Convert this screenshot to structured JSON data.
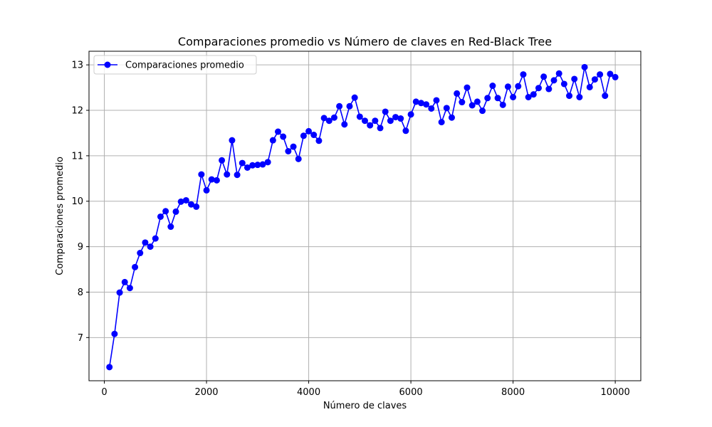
{
  "chart_data": {
    "type": "line",
    "title": "Comparaciones promedio vs Número de claves en Red-Black Tree",
    "xlabel": "Número de claves",
    "ylabel": "Comparaciones promedio",
    "xlim": [
      -300,
      10500
    ],
    "ylim": [
      6.05,
      13.3
    ],
    "xticks": [
      0,
      2000,
      4000,
      6000,
      8000,
      10000
    ],
    "yticks": [
      7,
      8,
      9,
      10,
      11,
      12,
      13
    ],
    "grid": true,
    "legend_position": "upper-left",
    "series": [
      {
        "name": "Comparaciones promedio",
        "color": "#0000ff",
        "marker": "circle",
        "x": [
          100,
          200,
          300,
          400,
          500,
          600,
          700,
          800,
          900,
          1000,
          1100,
          1200,
          1300,
          1400,
          1500,
          1600,
          1700,
          1800,
          1900,
          2000,
          2100,
          2200,
          2300,
          2400,
          2500,
          2600,
          2700,
          2800,
          2900,
          3000,
          3100,
          3200,
          3300,
          3400,
          3500,
          3600,
          3700,
          3800,
          3900,
          4000,
          4100,
          4200,
          4300,
          4400,
          4500,
          4600,
          4700,
          4800,
          4900,
          5000,
          5100,
          5200,
          5300,
          5400,
          5500,
          5600,
          5700,
          5800,
          5900,
          6000,
          6100,
          6200,
          6300,
          6400,
          6500,
          6600,
          6700,
          6800,
          6900,
          7000,
          7100,
          7200,
          7300,
          7400,
          7500,
          7600,
          7700,
          7800,
          7900,
          8000,
          8100,
          8200,
          8300,
          8400,
          8500,
          8600,
          8700,
          8800,
          8900,
          9000,
          9100,
          9200,
          9300,
          9400,
          9500,
          9600,
          9700,
          9800,
          9900,
          10000
        ],
        "y": [
          6.35,
          7.08,
          7.99,
          8.22,
          8.09,
          8.55,
          8.86,
          9.09,
          9.0,
          9.18,
          9.66,
          9.78,
          9.44,
          9.77,
          9.99,
          10.02,
          9.93,
          9.88,
          10.59,
          10.24,
          10.48,
          10.46,
          10.9,
          10.59,
          11.34,
          10.58,
          10.84,
          10.74,
          10.79,
          10.8,
          10.81,
          10.86,
          11.34,
          11.53,
          11.42,
          11.1,
          11.2,
          10.93,
          11.44,
          11.54,
          11.46,
          11.33,
          11.83,
          11.77,
          11.84,
          12.09,
          11.69,
          12.09,
          12.28,
          11.86,
          11.77,
          11.67,
          11.77,
          11.61,
          11.97,
          11.77,
          11.85,
          11.82,
          11.55,
          11.91,
          12.19,
          12.16,
          12.13,
          12.04,
          12.22,
          11.74,
          12.05,
          11.84,
          12.37,
          12.18,
          12.5,
          12.11,
          12.19,
          11.99,
          12.27,
          12.54,
          12.27,
          12.12,
          12.52,
          12.29,
          12.53,
          12.79,
          12.29,
          12.35,
          12.49,
          12.74,
          12.47,
          12.66,
          12.81,
          12.58,
          12.32,
          12.69,
          12.29,
          12.95,
          12.51,
          12.68,
          12.79,
          12.32,
          12.8,
          12.73
        ]
      }
    ]
  }
}
